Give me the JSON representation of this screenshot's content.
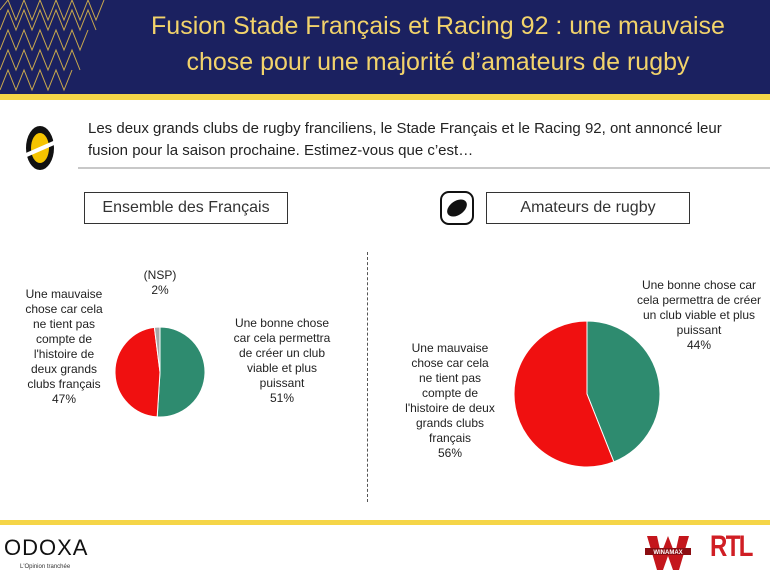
{
  "header": {
    "title_line1": "Fusion Stade Français et Racing 92 : une mauvaise",
    "title_line2": "chose pour une majorité d’amateurs de rugby"
  },
  "question": "Les deux grands clubs de rugby franciliens, le Stade Français et le Racing 92, ont annoncé leur fusion pour la saison prochaine. Estimez-vous que c’est…",
  "icons": {
    "question": "odoxa-lemon-icon",
    "rugby": "rugby-ball-icon"
  },
  "colors": {
    "header": "#1b2160",
    "accent": "#f5d548",
    "good": "#2e8b6f",
    "bad": "#f01010",
    "nsp": "#a8a8a8"
  },
  "chart_data": [
    {
      "type": "pie",
      "title": "Ensemble des Français",
      "slices": [
        {
          "label": "Une bonne chose car cela permettra de créer un club viable et plus puissant",
          "value": 51,
          "display": "51%",
          "color": "#2e8b6f"
        },
        {
          "label": "Une mauvaise chose car cela ne tient pas compte de l'histoire de deux grands clubs français",
          "value": 47,
          "display": "47%",
          "color": "#f01010"
        },
        {
          "label": "(NSP)",
          "value": 2,
          "display": "2%",
          "color": "#a8a8a8"
        }
      ]
    },
    {
      "type": "pie",
      "title": "Amateurs de rugby",
      "slices": [
        {
          "label": "Une bonne chose car cela permettra de créer un club viable et plus puissant",
          "value": 44,
          "display": "44%",
          "color": "#2e8b6f"
        },
        {
          "label": "Une mauvaise chose car cela ne tient pas compte de l'histoire de deux grands clubs français",
          "value": 56,
          "display": "56%",
          "color": "#f01010"
        }
      ]
    }
  ],
  "footer": {
    "brand": "ODOXA",
    "tagline": "L'Opinion tranchée",
    "sponsor1": "WINAMAX",
    "sponsor2": "RTL"
  }
}
